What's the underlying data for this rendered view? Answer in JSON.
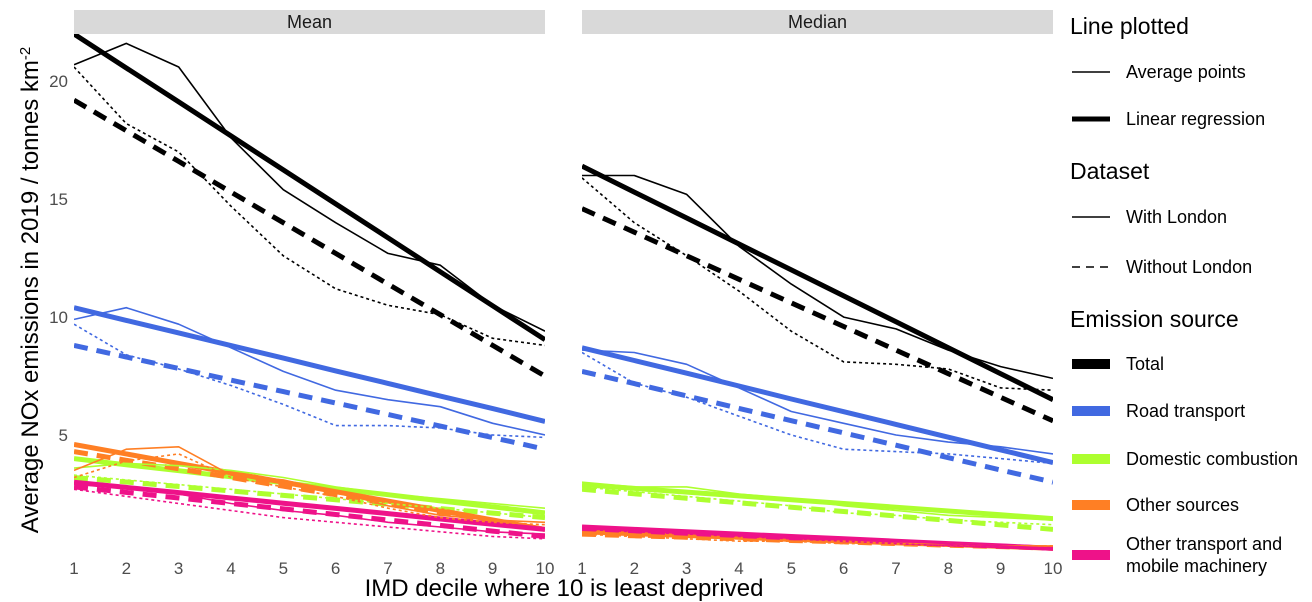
{
  "chart_data": {
    "type": "line",
    "xlabel": "IMD decile where 10 is least deprived",
    "ylabel": {
      "main": "Average  NOx emissions in  2019 / tonnes  km",
      "superscript": "-2"
    },
    "x": [
      1,
      2,
      3,
      4,
      5,
      6,
      7,
      8,
      9,
      10
    ],
    "xticks": [
      "1",
      "2",
      "3",
      "4",
      "5",
      "6",
      "7",
      "8",
      "9",
      "10"
    ],
    "yticks": [
      {
        "value": 5,
        "label": "5"
      },
      {
        "value": 10,
        "label": "10"
      },
      {
        "value": 15,
        "label": "15"
      },
      {
        "value": 20,
        "label": "20"
      }
    ],
    "xlim": [
      1,
      10
    ],
    "ylim": [
      0,
      22
    ],
    "colors": {
      "Total": "#000000",
      "Road transport": "#4169e1",
      "Domestic combustion": "#adff2f",
      "Other sources": "#ff7f24",
      "Other transport and mobile machinery": "#ee1289"
    },
    "panels": [
      {
        "label": "Mean",
        "series": [
          {
            "source": "Total",
            "dataset": "With London",
            "kind": "points",
            "values": [
              20.7,
              21.6,
              20.6,
              17.6,
              15.4,
              14.0,
              12.7,
              12.2,
              10.5,
              9.4
            ]
          },
          {
            "source": "Total",
            "dataset": "Without London",
            "kind": "points",
            "values": [
              20.6,
              18.2,
              17.0,
              14.7,
              12.6,
              11.2,
              10.5,
              10.1,
              9.1,
              8.8
            ]
          },
          {
            "source": "Total",
            "dataset": "With London",
            "kind": "regression",
            "values": [
              22.0,
              20.56,
              19.12,
              17.68,
              16.24,
              14.8,
              13.36,
              11.92,
              10.48,
              9.04
            ]
          },
          {
            "source": "Total",
            "dataset": "Without London",
            "kind": "regression",
            "values": [
              19.2,
              17.9,
              16.6,
              15.3,
              14.0,
              12.7,
              11.4,
              10.1,
              8.8,
              7.5
            ]
          },
          {
            "source": "Road transport",
            "dataset": "With London",
            "kind": "points",
            "values": [
              9.9,
              10.4,
              9.7,
              8.7,
              7.7,
              6.9,
              6.5,
              6.2,
              5.5,
              5.0
            ]
          },
          {
            "source": "Road transport",
            "dataset": "Without London",
            "kind": "points",
            "values": [
              9.7,
              8.4,
              7.8,
              7.1,
              6.3,
              5.4,
              5.4,
              5.3,
              5.0,
              4.9
            ]
          },
          {
            "source": "Road transport",
            "dataset": "With London",
            "kind": "regression",
            "values": [
              10.4,
              9.86,
              9.33,
              8.79,
              8.26,
              7.72,
              7.19,
              6.65,
              6.12,
              5.58
            ]
          },
          {
            "source": "Road transport",
            "dataset": "Without London",
            "kind": "regression",
            "values": [
              8.8,
              8.31,
              7.82,
              7.33,
              6.84,
              6.36,
              5.87,
              5.38,
              4.89,
              4.4
            ]
          },
          {
            "source": "Domestic combustion",
            "dataset": "With London",
            "kind": "points",
            "values": [
              3.6,
              3.8,
              3.7,
              3.5,
              3.2,
              2.8,
              2.5,
              2.3,
              2.1,
              1.9
            ]
          },
          {
            "source": "Domestic combustion",
            "dataset": "Without London",
            "kind": "points",
            "values": [
              3.3,
              3.1,
              2.9,
              2.7,
              2.5,
              2.3,
              2.1,
              1.9,
              1.7,
              1.5
            ]
          },
          {
            "source": "Domestic combustion",
            "dataset": "With London",
            "kind": "regression",
            "values": [
              4.0,
              3.74,
              3.49,
              3.23,
              2.98,
              2.72,
              2.47,
              2.21,
              1.96,
              1.7
            ]
          },
          {
            "source": "Domestic combustion",
            "dataset": "Without London",
            "kind": "regression",
            "values": [
              3.2,
              3.01,
              2.82,
              2.63,
              2.44,
              2.26,
              2.07,
              1.88,
              1.69,
              1.5
            ]
          },
          {
            "source": "Other sources",
            "dataset": "With London",
            "kind": "points",
            "values": [
              3.5,
              4.4,
              4.5,
              3.3,
              3.1,
              2.6,
              2.0,
              1.6,
              1.4,
              1.3
            ]
          },
          {
            "source": "Other sources",
            "dataset": "Without London",
            "kind": "points",
            "values": [
              3.2,
              3.9,
              4.2,
              3.2,
              2.8,
              2.4,
              1.9,
              1.5,
              1.3,
              1.2
            ]
          },
          {
            "source": "Other sources",
            "dataset": "With London",
            "kind": "regression",
            "values": [
              4.6,
              4.2,
              3.8,
              3.4,
              3.0,
              2.6,
              2.2,
              1.8,
              1.4,
              1.0
            ]
          },
          {
            "source": "Other sources",
            "dataset": "Without London",
            "kind": "regression",
            "values": [
              4.3,
              3.93,
              3.57,
              3.2,
              2.83,
              2.47,
              2.1,
              1.73,
              1.37,
              1.0
            ]
          },
          {
            "source": "Other transport and mobile machinery",
            "dataset": "With London",
            "kind": "points",
            "values": [
              2.9,
              2.8,
              2.5,
              2.1,
              1.8,
              1.6,
              1.3,
              1.1,
              0.9,
              0.8
            ]
          },
          {
            "source": "Other transport and mobile machinery",
            "dataset": "Without London",
            "kind": "points",
            "values": [
              2.7,
              2.4,
              2.1,
              1.8,
              1.5,
              1.3,
              1.1,
              0.9,
              0.7,
              0.6
            ]
          },
          {
            "source": "Other transport and mobile machinery",
            "dataset": "With London",
            "kind": "regression",
            "values": [
              3.0,
              2.78,
              2.56,
              2.33,
              2.11,
              1.89,
              1.67,
              1.44,
              1.22,
              1.0
            ]
          },
          {
            "source": "Other transport and mobile machinery",
            "dataset": "Without London",
            "kind": "regression",
            "values": [
              2.8,
              2.57,
              2.33,
              2.1,
              1.87,
              1.63,
              1.4,
              1.17,
              0.93,
              0.7
            ]
          }
        ]
      },
      {
        "label": "Median",
        "series": [
          {
            "source": "Total",
            "dataset": "With London",
            "kind": "points",
            "values": [
              16.0,
              16.0,
              15.2,
              13.0,
              11.4,
              10.0,
              9.5,
              8.6,
              7.9,
              7.4
            ]
          },
          {
            "source": "Total",
            "dataset": "Without London",
            "kind": "points",
            "values": [
              15.9,
              14.0,
              12.6,
              11.1,
              9.4,
              8.1,
              8.0,
              7.8,
              7.0,
              6.9
            ]
          },
          {
            "source": "Total",
            "dataset": "With London",
            "kind": "regression",
            "values": [
              16.4,
              15.3,
              14.2,
              13.1,
              12.0,
              10.9,
              9.8,
              8.7,
              7.6,
              6.5
            ]
          },
          {
            "source": "Total",
            "dataset": "Without London",
            "kind": "regression",
            "values": [
              14.6,
              13.6,
              12.6,
              11.6,
              10.6,
              9.6,
              8.6,
              7.6,
              6.6,
              5.6
            ]
          },
          {
            "source": "Road transport",
            "dataset": "With London",
            "kind": "points",
            "values": [
              8.6,
              8.5,
              8.0,
              7.0,
              6.0,
              5.5,
              5.0,
              4.7,
              4.5,
              4.2
            ]
          },
          {
            "source": "Road transport",
            "dataset": "Without London",
            "kind": "points",
            "values": [
              8.5,
              7.2,
              6.6,
              5.8,
              5.0,
              4.4,
              4.3,
              4.2,
              4.0,
              3.8
            ]
          },
          {
            "source": "Road transport",
            "dataset": "With London",
            "kind": "regression",
            "values": [
              8.7,
              8.16,
              7.62,
              7.08,
              6.53,
              5.99,
              5.45,
              4.91,
              4.37,
              3.83
            ]
          },
          {
            "source": "Road transport",
            "dataset": "Without London",
            "kind": "regression",
            "values": [
              7.7,
              7.18,
              6.66,
              6.13,
              5.61,
              5.09,
              4.57,
              4.04,
              3.52,
              3.0
            ]
          },
          {
            "source": "Domestic combustion",
            "dataset": "With London",
            "kind": "points",
            "values": [
              3.0,
              2.8,
              2.8,
              2.5,
              2.3,
              2.0,
              1.8,
              1.6,
              1.5,
              1.4
            ]
          },
          {
            "source": "Domestic combustion",
            "dataset": "Without London",
            "kind": "points",
            "values": [
              2.8,
              2.6,
              2.4,
              2.2,
              2.0,
              1.7,
              1.6,
              1.4,
              1.3,
              1.2
            ]
          },
          {
            "source": "Domestic combustion",
            "dataset": "With London",
            "kind": "regression",
            "values": [
              2.9,
              2.74,
              2.58,
              2.42,
              2.26,
              2.1,
              1.94,
              1.78,
              1.62,
              1.46
            ]
          },
          {
            "source": "Domestic combustion",
            "dataset": "Without London",
            "kind": "regression",
            "values": [
              2.7,
              2.51,
              2.32,
              2.13,
              1.94,
              1.76,
              1.57,
              1.38,
              1.19,
              1.0
            ]
          },
          {
            "source": "Other sources",
            "dataset": "With London",
            "kind": "points",
            "values": [
              0.9,
              0.8,
              0.7,
              0.6,
              0.5,
              0.5,
              0.4,
              0.4,
              0.3,
              0.3
            ]
          },
          {
            "source": "Other sources",
            "dataset": "Without London",
            "kind": "points",
            "values": [
              0.8,
              0.7,
              0.6,
              0.5,
              0.5,
              0.4,
              0.4,
              0.3,
              0.3,
              0.3
            ]
          },
          {
            "source": "Other sources",
            "dataset": "With London",
            "kind": "regression",
            "values": [
              0.9,
              0.82,
              0.74,
              0.67,
              0.59,
              0.51,
              0.43,
              0.36,
              0.28,
              0.2
            ]
          },
          {
            "source": "Other sources",
            "dataset": "Without London",
            "kind": "regression",
            "values": [
              0.8,
              0.73,
              0.67,
              0.6,
              0.53,
              0.47,
              0.4,
              0.33,
              0.27,
              0.2
            ]
          },
          {
            "source": "Other transport and mobile machinery",
            "dataset": "With London",
            "kind": "points",
            "values": [
              1.1,
              1.0,
              0.9,
              0.8,
              0.7,
              0.6,
              0.5,
              0.4,
              0.3,
              0.2
            ]
          },
          {
            "source": "Other transport and mobile machinery",
            "dataset": "Without London",
            "kind": "points",
            "values": [
              1.0,
              0.9,
              0.8,
              0.7,
              0.6,
              0.5,
              0.4,
              0.3,
              0.25,
              0.2
            ]
          },
          {
            "source": "Other transport and mobile machinery",
            "dataset": "With London",
            "kind": "regression",
            "values": [
              1.1,
              1.0,
              0.9,
              0.8,
              0.7,
              0.6,
              0.5,
              0.4,
              0.3,
              0.2
            ]
          },
          {
            "source": "Other transport and mobile machinery",
            "dataset": "Without London",
            "kind": "regression",
            "values": [
              1.0,
              0.91,
              0.82,
              0.73,
              0.64,
              0.56,
              0.47,
              0.38,
              0.29,
              0.2
            ]
          }
        ]
      }
    ],
    "legend": {
      "placement": "right",
      "groups": [
        {
          "title": "Line plotted",
          "items": [
            {
              "label": "Average points",
              "style": "thin"
            },
            {
              "label": "Linear regression",
              "style": "thick"
            }
          ]
        },
        {
          "title": "Dataset",
          "items": [
            {
              "label": "With London",
              "style": "solid"
            },
            {
              "label": "Without London",
              "style": "dashed"
            }
          ]
        },
        {
          "title": "Emission source",
          "items": [
            {
              "label": "Total",
              "source": "Total"
            },
            {
              "label": "Road transport",
              "source": "Road transport"
            },
            {
              "label": "Domestic combustion",
              "source": "Domestic combustion"
            },
            {
              "label": "Other sources",
              "source": "Other sources"
            },
            {
              "label": "Other transport and\nmobile machinery",
              "source": "Other transport and mobile machinery"
            }
          ]
        }
      ]
    }
  }
}
